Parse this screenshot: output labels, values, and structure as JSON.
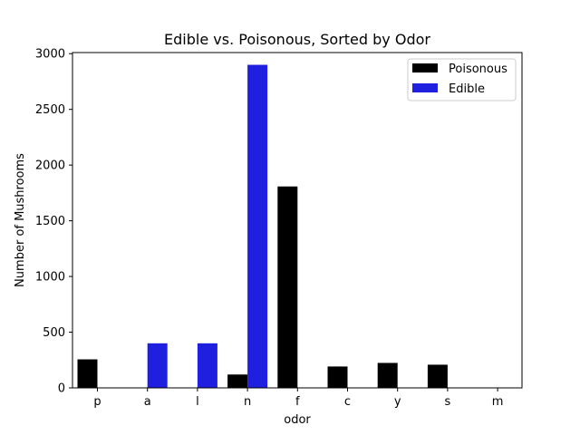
{
  "chart_data": {
    "type": "bar",
    "title": "Edible vs. Poisonous, Sorted by Odor",
    "xlabel": "odor",
    "ylabel": "Number of Mushrooms",
    "categories": [
      "p",
      "a",
      "l",
      "n",
      "f",
      "c",
      "y",
      "s",
      "m"
    ],
    "series": [
      {
        "name": "Poisonous",
        "color": "#000000",
        "values": [
          256,
          0,
          0,
          120,
          1808,
          192,
          224,
          208,
          0
        ]
      },
      {
        "name": "Edible",
        "color": "#1f1fdf",
        "values": [
          0,
          400,
          400,
          2900,
          0,
          0,
          0,
          0,
          0
        ]
      }
    ],
    "ylim": [
      0,
      3010
    ],
    "yticks": [
      0,
      500,
      1000,
      1500,
      2000,
      2500,
      3000
    ],
    "legend_position": "top-right",
    "grid": false
  }
}
